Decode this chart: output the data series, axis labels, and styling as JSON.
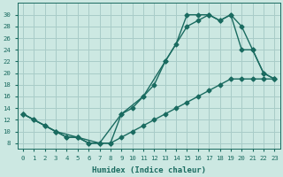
{
  "background_color": "#cce8e2",
  "grid_color": "#a8ccc8",
  "line_color": "#1a6b60",
  "xlabel": "Humidex (Indice chaleur)",
  "xlim": [
    -0.5,
    23.5
  ],
  "ylim": [
    7,
    32
  ],
  "xticks": [
    0,
    1,
    2,
    3,
    4,
    5,
    6,
    7,
    8,
    9,
    10,
    11,
    12,
    13,
    14,
    15,
    16,
    17,
    18,
    19,
    20,
    21,
    22,
    23
  ],
  "yticks": [
    8,
    10,
    12,
    14,
    16,
    18,
    20,
    22,
    24,
    26,
    28,
    30
  ],
  "curve1_x": [
    0,
    1,
    2,
    3,
    4,
    5,
    6,
    7,
    8,
    9,
    10,
    11,
    12,
    13,
    14,
    15,
    16,
    17,
    18,
    19,
    20,
    21,
    22,
    23
  ],
  "curve1_y": [
    13,
    12,
    11,
    10,
    9,
    9,
    8,
    8,
    8,
    13,
    14,
    16,
    18,
    22,
    25,
    30,
    30,
    30,
    29,
    30,
    24,
    24,
    20,
    19
  ],
  "curve2_x": [
    0,
    3,
    5,
    7,
    9,
    11,
    13,
    15,
    16,
    17,
    18,
    19,
    20,
    21,
    22,
    23
  ],
  "curve2_y": [
    13,
    10,
    9,
    8,
    13,
    16,
    22,
    28,
    29,
    30,
    29,
    30,
    28,
    24,
    20,
    19
  ],
  "curve3_x": [
    0,
    1,
    2,
    3,
    4,
    5,
    6,
    7,
    8,
    9,
    10,
    11,
    12,
    13,
    14,
    15,
    16,
    17,
    18,
    19,
    20,
    21,
    22,
    23
  ],
  "curve3_y": [
    13,
    12,
    11,
    10,
    9,
    9,
    8,
    8,
    8,
    9,
    10,
    11,
    12,
    13,
    14,
    15,
    16,
    17,
    18,
    19,
    19,
    19,
    19,
    19
  ],
  "marker_size": 2.5,
  "line_width": 1.0
}
